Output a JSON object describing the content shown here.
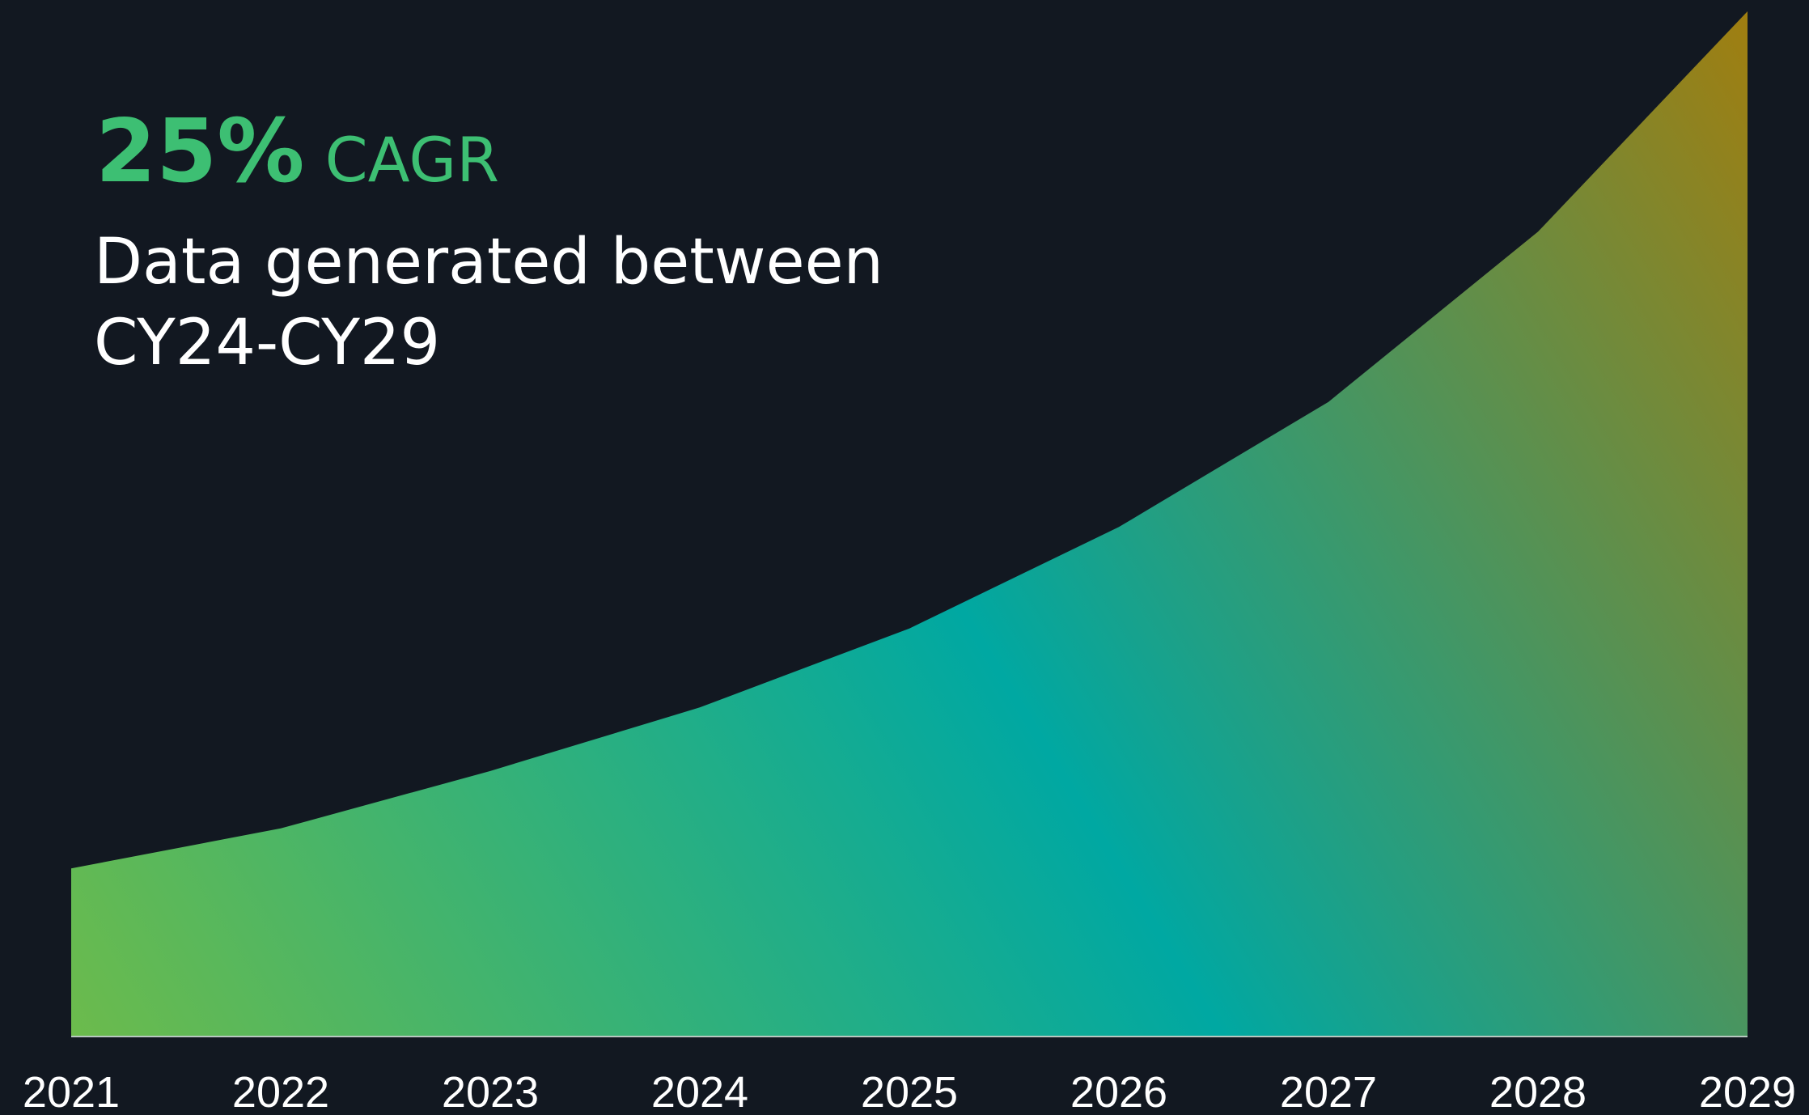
{
  "chart_data": {
    "type": "area",
    "title": "25%",
    "title_suffix": "CAGR",
    "subtitle": [
      "Data generated between",
      "CY24-CY29"
    ],
    "categories": [
      "2021",
      "2022",
      "2023",
      "2024",
      "2025",
      "2026",
      "2027",
      "2028",
      "2029"
    ],
    "values": [
      16.4,
      20.3,
      25.9,
      32.1,
      39.8,
      49.7,
      61.9,
      78.5,
      100
    ],
    "ylim": [
      0,
      100
    ],
    "colors": [
      "#6cbb4c",
      "#00a8a2",
      "#a07e10"
    ]
  }
}
